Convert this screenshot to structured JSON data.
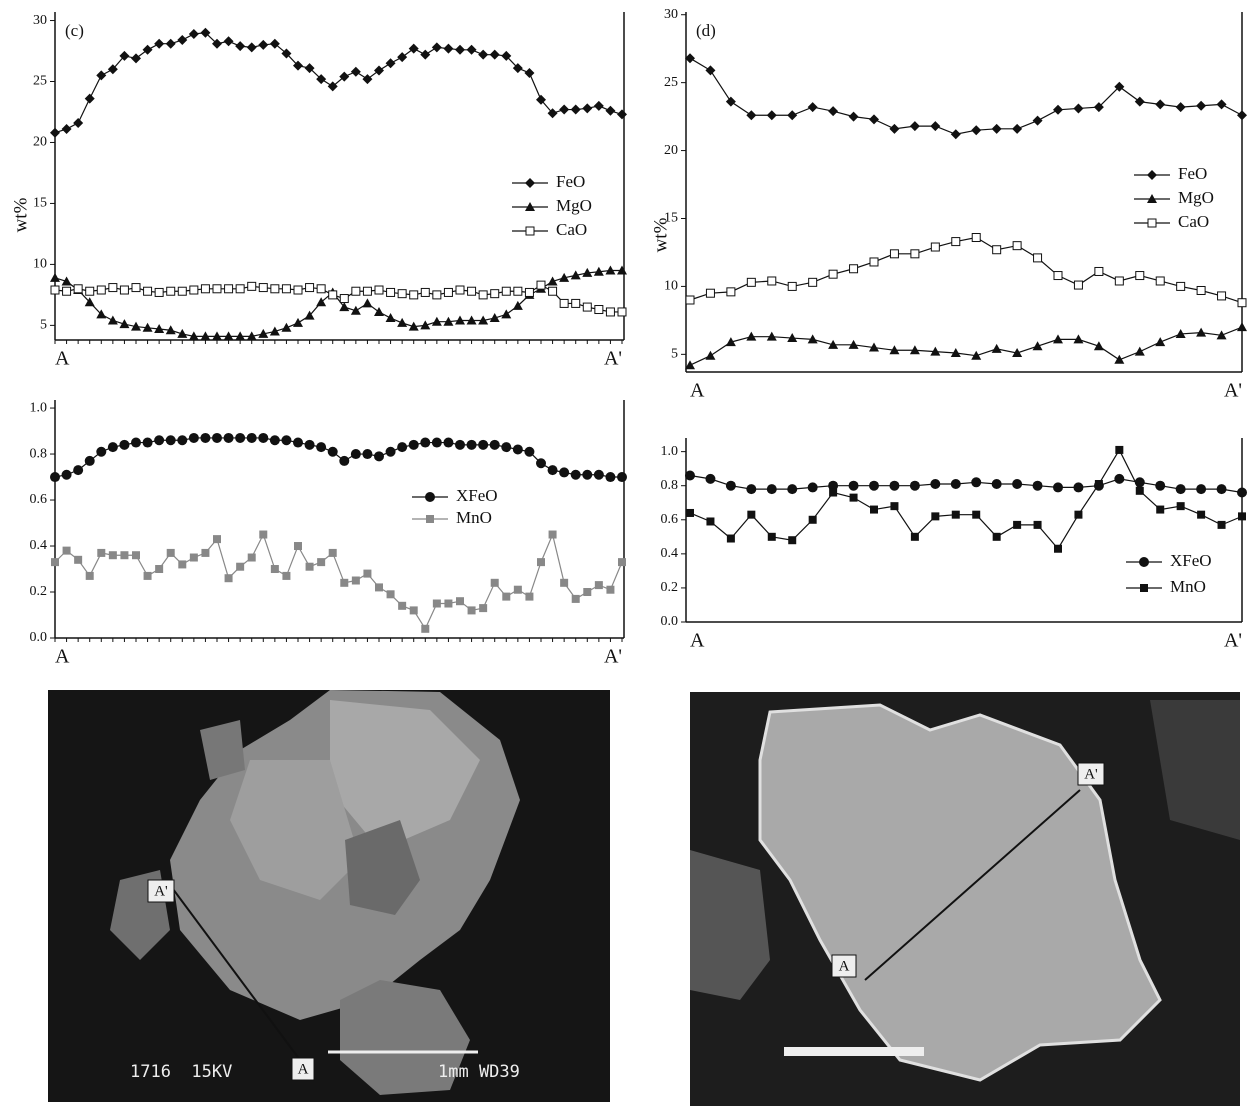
{
  "chart_data": [
    {
      "type": "line",
      "panel": "(c)",
      "ylabel": "wt%",
      "categories": [
        "A",
        null,
        null,
        null,
        null,
        null,
        null,
        null,
        null,
        null,
        null,
        null,
        null,
        null,
        null,
        null,
        null,
        null,
        null,
        null,
        null,
        null,
        null,
        null,
        null,
        null,
        null,
        null,
        null,
        null,
        null,
        null,
        null,
        null,
        null,
        null,
        null,
        null,
        null,
        null,
        null,
        null,
        null,
        null,
        null,
        null,
        null,
        null,
        null,
        "A'"
      ],
      "ylim": [
        3.8,
        30.7
      ],
      "yticks": [
        5,
        10,
        15,
        20,
        25,
        30
      ],
      "series": [
        {
          "name": "FeO",
          "color": "#111",
          "marker": "diamond",
          "values": [
            20.8,
            21.1,
            21.6,
            23.6,
            25.5,
            26.0,
            27.1,
            26.9,
            27.6,
            28.1,
            28.1,
            28.4,
            28.9,
            29.0,
            28.1,
            28.3,
            27.9,
            27.8,
            28.0,
            28.1,
            27.3,
            26.3,
            26.1,
            25.2,
            24.6,
            25.4,
            25.8,
            25.2,
            25.9,
            26.5,
            27.0,
            27.7,
            27.2,
            27.8,
            27.7,
            27.6,
            27.6,
            27.2,
            27.2,
            27.1,
            26.1,
            25.7,
            23.5,
            22.4,
            22.7,
            22.7,
            22.8,
            23.0,
            22.6,
            22.3
          ]
        },
        {
          "name": "MgO",
          "color": "#111",
          "marker": "triangle",
          "values": [
            8.9,
            8.6,
            7.9,
            6.9,
            5.9,
            5.4,
            5.1,
            4.9,
            4.8,
            4.7,
            4.6,
            4.3,
            4.1,
            4.1,
            4.1,
            4.1,
            4.1,
            4.1,
            4.3,
            4.5,
            4.8,
            5.2,
            5.8,
            6.9,
            7.7,
            6.5,
            6.2,
            6.8,
            6.1,
            5.6,
            5.2,
            4.9,
            5.0,
            5.3,
            5.3,
            5.4,
            5.4,
            5.4,
            5.6,
            5.9,
            6.6,
            7.5,
            8.0,
            8.6,
            8.9,
            9.1,
            9.3,
            9.4,
            9.5,
            9.5
          ]
        },
        {
          "name": "CaO",
          "color": "#111",
          "marker": "open-square",
          "values": [
            7.9,
            7.8,
            8.0,
            7.8,
            7.9,
            8.1,
            7.9,
            8.1,
            7.8,
            7.7,
            7.8,
            7.8,
            7.9,
            8.0,
            8.0,
            8.0,
            8.0,
            8.2,
            8.1,
            8.0,
            8.0,
            7.9,
            8.1,
            8.0,
            7.5,
            7.2,
            7.8,
            7.8,
            7.9,
            7.7,
            7.6,
            7.5,
            7.7,
            7.5,
            7.7,
            7.9,
            7.8,
            7.5,
            7.6,
            7.8,
            7.8,
            7.7,
            8.3,
            7.8,
            6.8,
            6.8,
            6.5,
            6.3,
            6.1,
            6.1
          ]
        }
      ]
    },
    {
      "type": "line",
      "categories": [
        "A",
        null,
        null,
        null,
        null,
        null,
        null,
        null,
        null,
        null,
        null,
        null,
        null,
        null,
        null,
        null,
        null,
        null,
        null,
        null,
        null,
        null,
        null,
        null,
        null,
        null,
        null,
        null,
        null,
        null,
        null,
        null,
        null,
        null,
        null,
        null,
        null,
        null,
        null,
        null,
        null,
        null,
        null,
        null,
        null,
        null,
        null,
        null,
        null,
        "A'"
      ],
      "ylim": [
        0,
        1.035
      ],
      "yticks": [
        {
          "value": 0,
          "label": "0.0"
        },
        0.2,
        0.4,
        0.6,
        0.8,
        {
          "value": 1,
          "label": "1.0"
        }
      ],
      "series": [
        {
          "name": "XFeO",
          "color": "#111",
          "marker": "circle",
          "values": [
            0.7,
            0.71,
            0.73,
            0.77,
            0.81,
            0.83,
            0.84,
            0.85,
            0.85,
            0.86,
            0.86,
            0.86,
            0.87,
            0.87,
            0.87,
            0.87,
            0.87,
            0.87,
            0.87,
            0.86,
            0.86,
            0.85,
            0.84,
            0.83,
            0.81,
            0.77,
            0.8,
            0.8,
            0.79,
            0.81,
            0.83,
            0.84,
            0.85,
            0.85,
            0.85,
            0.84,
            0.84,
            0.84,
            0.84,
            0.83,
            0.82,
            0.81,
            0.76,
            0.73,
            0.72,
            0.71,
            0.71,
            0.71,
            0.7,
            0.7
          ]
        },
        {
          "name": "MnO",
          "color": "#888",
          "marker": "square",
          "values": [
            0.33,
            0.38,
            0.34,
            0.27,
            0.37,
            0.36,
            0.36,
            0.36,
            0.27,
            0.3,
            0.37,
            0.32,
            0.35,
            0.37,
            0.43,
            0.26,
            0.31,
            0.35,
            0.45,
            0.3,
            0.27,
            0.4,
            0.31,
            0.33,
            0.37,
            0.24,
            0.25,
            0.28,
            0.22,
            0.19,
            0.14,
            0.12,
            0.04,
            0.15,
            0.15,
            0.16,
            0.12,
            0.13,
            0.24,
            0.18,
            0.21,
            0.18,
            0.33,
            0.45,
            0.24,
            0.17,
            0.2,
            0.23,
            0.21,
            0.33
          ]
        }
      ]
    },
    {
      "type": "line",
      "panel": "(d)",
      "ylabel": "wt%",
      "categories": [
        "A",
        null,
        null,
        null,
        null,
        null,
        null,
        null,
        null,
        null,
        null,
        null,
        null,
        null,
        null,
        null,
        null,
        null,
        null,
        null,
        null,
        null,
        null,
        null,
        null,
        null,
        null,
        "A'"
      ],
      "ylim": [
        3.7,
        30.2
      ],
      "yticks": [
        5,
        10,
        15,
        20,
        25,
        30
      ],
      "series": [
        {
          "name": "FeO",
          "color": "#111",
          "marker": "diamond",
          "values": [
            26.8,
            25.9,
            23.6,
            22.6,
            22.6,
            22.6,
            23.2,
            22.9,
            22.5,
            22.3,
            21.6,
            21.8,
            21.8,
            21.2,
            21.5,
            21.6,
            21.6,
            22.2,
            23.0,
            23.1,
            23.2,
            24.7,
            23.6,
            23.4,
            23.2,
            23.3,
            23.4,
            22.6
          ]
        },
        {
          "name": "MgO",
          "color": "#111",
          "marker": "triangle",
          "values": [
            4.2,
            4.9,
            5.9,
            6.3,
            6.3,
            6.2,
            6.1,
            5.7,
            5.7,
            5.5,
            5.3,
            5.3,
            5.2,
            5.1,
            4.9,
            5.4,
            5.1,
            5.6,
            6.1,
            6.1,
            5.6,
            4.6,
            5.2,
            5.9,
            6.5,
            6.6,
            6.4,
            7.0
          ]
        },
        {
          "name": "CaO",
          "color": "#111",
          "marker": "open-square",
          "values": [
            9.0,
            9.5,
            9.6,
            10.3,
            10.4,
            10.0,
            10.3,
            10.9,
            11.3,
            11.8,
            12.4,
            12.4,
            12.9,
            13.3,
            13.6,
            12.7,
            13.0,
            12.1,
            10.8,
            10.1,
            11.1,
            10.4,
            10.8,
            10.4,
            10.0,
            9.7,
            9.3,
            8.8
          ]
        }
      ]
    },
    {
      "type": "line",
      "categories": [
        "A",
        null,
        null,
        null,
        null,
        null,
        null,
        null,
        null,
        null,
        null,
        null,
        null,
        null,
        null,
        null,
        null,
        null,
        null,
        null,
        null,
        null,
        null,
        null,
        null,
        null,
        null,
        "A'"
      ],
      "ylim": [
        0,
        1.08
      ],
      "yticks": [
        {
          "value": 0,
          "label": "0.0"
        },
        0.2,
        0.4,
        0.6,
        0.8,
        {
          "value": 1,
          "label": "1.0"
        }
      ],
      "series": [
        {
          "name": "XFeO",
          "color": "#111",
          "marker": "circle",
          "values": [
            0.86,
            0.84,
            0.8,
            0.78,
            0.78,
            0.78,
            0.79,
            0.8,
            0.8,
            0.8,
            0.8,
            0.8,
            0.81,
            0.81,
            0.82,
            0.81,
            0.81,
            0.8,
            0.79,
            0.79,
            0.8,
            0.84,
            0.82,
            0.8,
            0.78,
            0.78,
            0.78,
            0.76
          ]
        },
        {
          "name": "MnO",
          "color": "#111",
          "marker": "square",
          "values": [
            0.64,
            0.59,
            0.49,
            0.63,
            0.5,
            0.48,
            0.6,
            0.76,
            0.73,
            0.66,
            0.68,
            0.5,
            0.62,
            0.63,
            0.63,
            0.5,
            0.57,
            0.57,
            0.43,
            0.63,
            0.81,
            1.01,
            0.77,
            0.66,
            0.68,
            0.63,
            0.57,
            0.62
          ]
        }
      ]
    }
  ],
  "micrographs": [
    {
      "start": "A",
      "end": "A'",
      "caption_left": "1716  15KV",
      "caption_right": "1mm WD39"
    },
    {
      "start": "A",
      "end": "A'"
    }
  ]
}
